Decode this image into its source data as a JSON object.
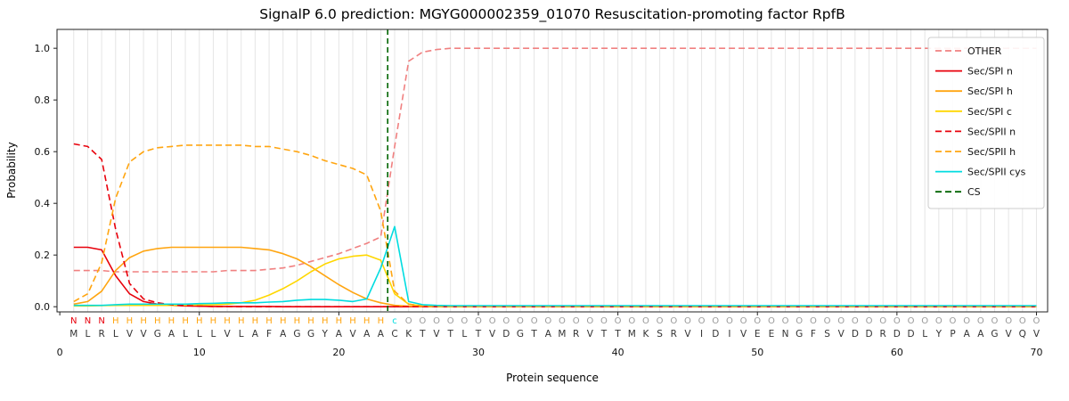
{
  "chart_data": {
    "type": "line",
    "title": "SignalP 6.0 prediction: MGYG000002359_01070 Resuscitation-promoting factor RpfB",
    "xlabel": "Protein sequence",
    "ylabel": "Probability",
    "xlim": [
      -0.2,
      70.8
    ],
    "ylim": [
      -0.02,
      1.073
    ],
    "xticks": [
      0,
      10,
      20,
      30,
      40,
      50,
      60,
      70
    ],
    "yticks": [
      0.0,
      0.2,
      0.4,
      0.6,
      0.8,
      1.0
    ],
    "grid": true,
    "grid_color": "#e5e5e5",
    "legend_position": "upper-right",
    "x": [
      1,
      2,
      3,
      4,
      5,
      6,
      7,
      8,
      9,
      10,
      11,
      12,
      13,
      14,
      15,
      16,
      17,
      18,
      19,
      20,
      21,
      22,
      23,
      24,
      25,
      26,
      27,
      28,
      29,
      30,
      31,
      32,
      33,
      34,
      35,
      36,
      37,
      38,
      39,
      40,
      41,
      42,
      43,
      44,
      45,
      46,
      47,
      48,
      49,
      50,
      51,
      52,
      53,
      54,
      55,
      56,
      57,
      58,
      59,
      60,
      61,
      62,
      63,
      64,
      65,
      66,
      67,
      68,
      69,
      70
    ],
    "series": [
      {
        "name": "OTHER",
        "color": "#f08080",
        "dash": true,
        "values": [
          0.14,
          0.14,
          0.14,
          0.135,
          0.135,
          0.135,
          0.135,
          0.135,
          0.135,
          0.135,
          0.135,
          0.14,
          0.14,
          0.14,
          0.145,
          0.15,
          0.16,
          0.175,
          0.19,
          0.205,
          0.225,
          0.245,
          0.27,
          0.62,
          0.95,
          0.985,
          0.995,
          1.0,
          1.0,
          1.0,
          1.0,
          1.0,
          1.0,
          1.0,
          1.0,
          1.0,
          1.0,
          1.0,
          1.0,
          1.0,
          1.0,
          1.0,
          1.0,
          1.0,
          1.0,
          1.0,
          1.0,
          1.0,
          1.0,
          1.0,
          1.0,
          1.0,
          1.0,
          1.0,
          1.0,
          1.0,
          1.0,
          1.0,
          1.0,
          1.0,
          1.0,
          1.0,
          1.0,
          1.0,
          1.0,
          1.0,
          1.0,
          1.0,
          1.0,
          1.0
        ]
      },
      {
        "name": "Sec/SPI n",
        "color": "#e8000b",
        "dash": false,
        "values": [
          0.23,
          0.23,
          0.22,
          0.12,
          0.05,
          0.02,
          0.01,
          0.005,
          0.003,
          0.002,
          0.001,
          0.001,
          0.001,
          0.001,
          0.001,
          0,
          0,
          0,
          0,
          0,
          0,
          0,
          0,
          0,
          0,
          0,
          0,
          0,
          0,
          0,
          0,
          0,
          0,
          0,
          0,
          0,
          0,
          0,
          0,
          0,
          0,
          0,
          0,
          0,
          0,
          0,
          0,
          0,
          0,
          0,
          0,
          0,
          0,
          0,
          0,
          0,
          0,
          0,
          0,
          0,
          0,
          0,
          0,
          0,
          0,
          0,
          0,
          0,
          0,
          0
        ]
      },
      {
        "name": "Sec/SPI h",
        "color": "#ffa510",
        "dash": false,
        "values": [
          0.01,
          0.02,
          0.06,
          0.14,
          0.19,
          0.215,
          0.225,
          0.23,
          0.23,
          0.23,
          0.23,
          0.23,
          0.23,
          0.225,
          0.22,
          0.205,
          0.185,
          0.155,
          0.12,
          0.085,
          0.055,
          0.03,
          0.015,
          0.005,
          0.002,
          0.001,
          0,
          0,
          0,
          0,
          0,
          0,
          0,
          0,
          0,
          0,
          0,
          0,
          0,
          0,
          0,
          0,
          0,
          0,
          0,
          0,
          0,
          0,
          0,
          0,
          0,
          0,
          0,
          0,
          0,
          0,
          0,
          0,
          0,
          0,
          0,
          0,
          0,
          0,
          0,
          0,
          0,
          0,
          0,
          0
        ]
      },
      {
        "name": "Sec/SPI c",
        "color": "#ffd700",
        "dash": false,
        "values": [
          0.003,
          0.003,
          0.004,
          0.005,
          0.005,
          0.005,
          0.005,
          0.005,
          0.006,
          0.007,
          0.008,
          0.01,
          0.015,
          0.025,
          0.045,
          0.07,
          0.1,
          0.135,
          0.165,
          0.185,
          0.195,
          0.2,
          0.18,
          0.05,
          0.01,
          0.003,
          0.001,
          0,
          0,
          0,
          0,
          0,
          0,
          0,
          0,
          0,
          0,
          0,
          0,
          0,
          0,
          0,
          0,
          0,
          0,
          0,
          0,
          0,
          0,
          0,
          0,
          0,
          0,
          0,
          0,
          0,
          0,
          0,
          0,
          0,
          0,
          0,
          0,
          0,
          0,
          0,
          0,
          0,
          0,
          0
        ]
      },
      {
        "name": "Sec/SPII n",
        "color": "#e8000b",
        "dash": true,
        "values": [
          0.63,
          0.62,
          0.57,
          0.3,
          0.09,
          0.03,
          0.015,
          0.008,
          0.004,
          0.002,
          0.001,
          0.001,
          0,
          0,
          0,
          0,
          0,
          0,
          0,
          0,
          0,
          0,
          0,
          0,
          0,
          0,
          0,
          0,
          0,
          0,
          0,
          0,
          0,
          0,
          0,
          0,
          0,
          0,
          0,
          0,
          0,
          0,
          0,
          0,
          0,
          0,
          0,
          0,
          0,
          0,
          0,
          0,
          0,
          0,
          0,
          0,
          0,
          0,
          0,
          0,
          0,
          0,
          0,
          0,
          0,
          0,
          0,
          0,
          0,
          0
        ]
      },
      {
        "name": "Sec/SPII h",
        "color": "#ffa510",
        "dash": true,
        "values": [
          0.02,
          0.05,
          0.17,
          0.42,
          0.56,
          0.6,
          0.615,
          0.62,
          0.625,
          0.625,
          0.625,
          0.625,
          0.625,
          0.62,
          0.62,
          0.61,
          0.6,
          0.585,
          0.565,
          0.55,
          0.535,
          0.51,
          0.37,
          0.06,
          0.01,
          0.003,
          0.001,
          0,
          0,
          0,
          0,
          0,
          0,
          0,
          0,
          0,
          0,
          0,
          0,
          0,
          0,
          0,
          0,
          0,
          0,
          0,
          0,
          0,
          0,
          0,
          0,
          0,
          0,
          0,
          0,
          0,
          0,
          0,
          0,
          0,
          0,
          0,
          0,
          0,
          0,
          0,
          0,
          0,
          0,
          0
        ]
      },
      {
        "name": "Sec/SPII cys",
        "color": "#00dce0",
        "dash": false,
        "values": [
          0.005,
          0.005,
          0.005,
          0.008,
          0.01,
          0.01,
          0.01,
          0.01,
          0.01,
          0.012,
          0.013,
          0.015,
          0.015,
          0.015,
          0.018,
          0.02,
          0.025,
          0.028,
          0.028,
          0.025,
          0.02,
          0.03,
          0.15,
          0.31,
          0.02,
          0.008,
          0.005,
          0.004,
          0.004,
          0.004,
          0.004,
          0.004,
          0.004,
          0.004,
          0.004,
          0.004,
          0.004,
          0.004,
          0.004,
          0.004,
          0.004,
          0.004,
          0.004,
          0.004,
          0.004,
          0.004,
          0.004,
          0.004,
          0.004,
          0.004,
          0.004,
          0.004,
          0.004,
          0.004,
          0.004,
          0.004,
          0.004,
          0.004,
          0.004,
          0.004,
          0.004,
          0.004,
          0.004,
          0.004,
          0.004,
          0.004,
          0.004,
          0.004,
          0.004,
          0.004
        ]
      }
    ],
    "cs_line": {
      "label": "CS",
      "position": 23.5,
      "color": "#006400",
      "dash": true
    },
    "sequence": "MLRLVVGALLLVLAFAGGYAVAACKTVTLTVDGTAMRVTTMKSRVIDIVEENGFSVDDRDDLYPAAGVQV",
    "annotation": "NNNHHHHHHHHHHHHHHHHHHHHcOOOOOOOOOOOOOOOOOOOOOOOOOOOOOOOOOOOOOOOOOOOOOO",
    "annotation_colors": {
      "N": "#e8000b",
      "H": "#ffa510",
      "c": "#00dce0",
      "O": "#9a9a9a"
    },
    "sequence_color": "#333333",
    "axis_color": "#222222",
    "tick_label_color": "#111111"
  }
}
